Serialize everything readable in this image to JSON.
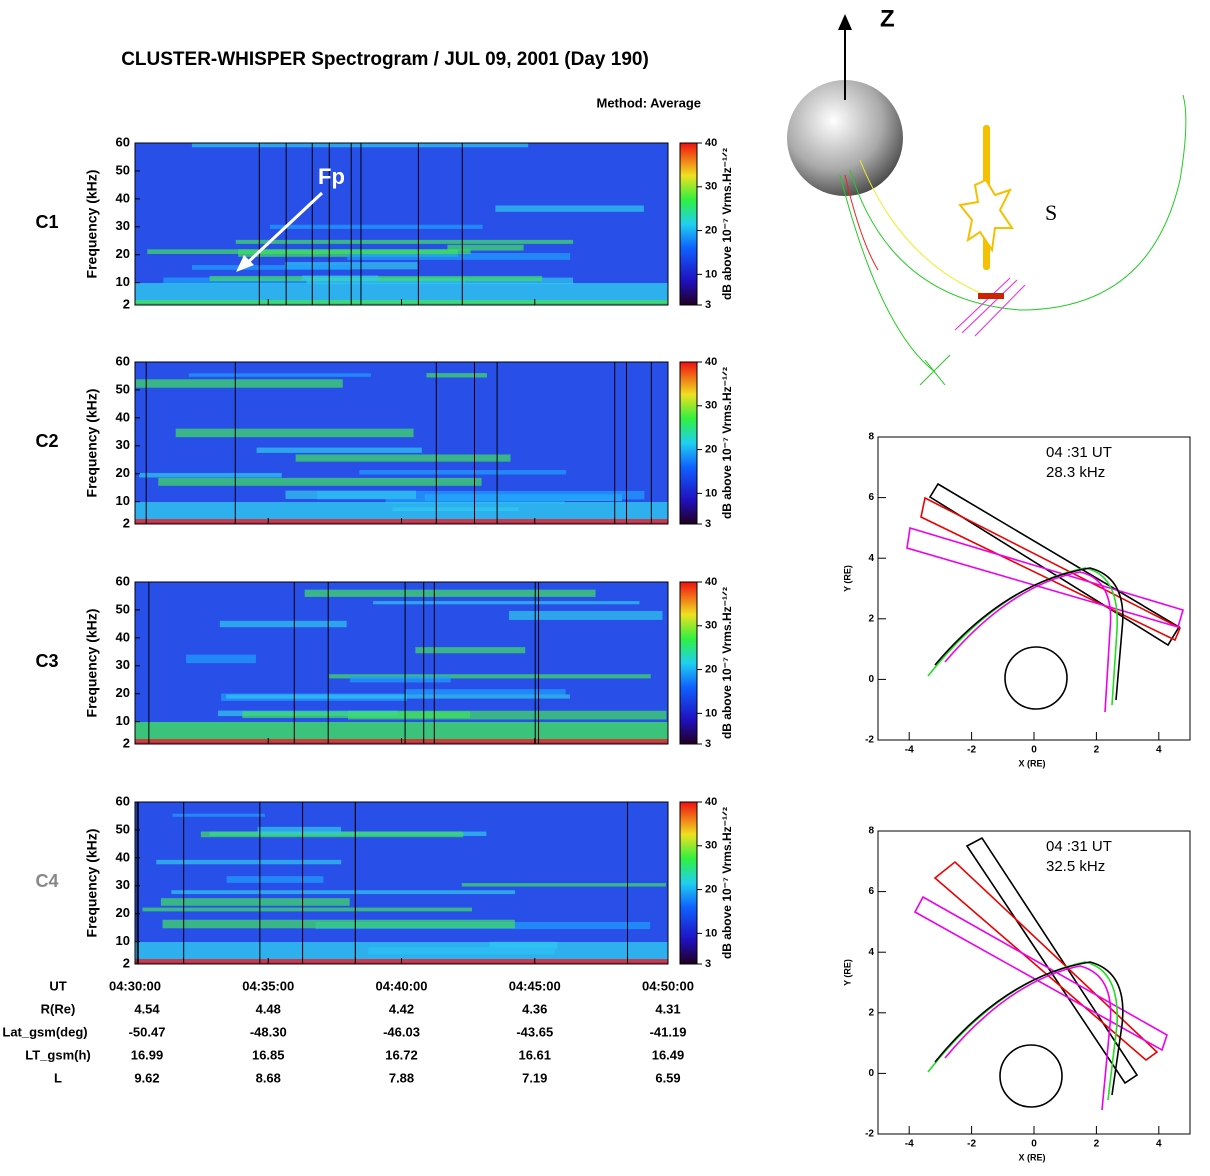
{
  "spectrogram": {
    "title": "CLUSTER-WHISPER Spectrogram / JUL 09, 2001 (Day 190)",
    "method": "Method: Average",
    "ylabel": "Frequency (kHz)",
    "yticks": [
      2,
      10,
      20,
      30,
      40,
      50,
      60
    ],
    "ylim": [
      2,
      60
    ],
    "colorbar": {
      "label": "dB above 10⁻⁷ Vrms.Hz⁻¹ᐟ²",
      "ticks": [
        3,
        10,
        20,
        30,
        40
      ],
      "lim": [
        3,
        40
      ]
    },
    "panels": [
      "C1",
      "C2",
      "C3",
      "C4"
    ],
    "annotation": "Fp",
    "ephemeris": {
      "rows": [
        {
          "label": "UT",
          "values": [
            "04:30:00",
            "04:35:00",
            "04:40:00",
            "04:45:00",
            "04:50:00"
          ]
        },
        {
          "label": "R(Re)",
          "values": [
            "4.54",
            "4.48",
            "4.42",
            "4.36",
            "4.31"
          ]
        },
        {
          "label": "Lat_gsm(deg)",
          "values": [
            "-50.47",
            "-48.30",
            "-46.03",
            "-43.65",
            "-41.19"
          ]
        },
        {
          "label": "LT_gsm(h)",
          "values": [
            "16.99",
            "16.85",
            "16.72",
            "16.61",
            "16.49"
          ]
        },
        {
          "label": "L",
          "values": [
            "9.62",
            "8.68",
            "7.88",
            "7.19",
            "6.59"
          ]
        }
      ]
    }
  },
  "orbit": {
    "axis_label": "Z",
    "region_label": "S"
  },
  "ray_plots": [
    {
      "time": "04 :31 UT",
      "freq": "28.3 kHz",
      "xlabel": "X (RE)",
      "ylabel": "Y (RE)",
      "xticks": [
        -4,
        -2,
        0,
        2,
        4
      ],
      "xlim": [
        -5,
        5
      ],
      "yticks": [
        -2,
        0,
        2,
        4,
        6,
        8
      ],
      "ylim": [
        -2,
        8
      ]
    },
    {
      "time": "04 :31 UT",
      "freq": "32.5 kHz",
      "xlabel": "X (RE)",
      "ylabel": "Y (RE)",
      "xticks": [
        -4,
        -2,
        0,
        2,
        4
      ],
      "xlim": [
        -5,
        5
      ],
      "yticks": [
        -2,
        0,
        2,
        4,
        6,
        8
      ],
      "ylim": [
        -2,
        8
      ]
    }
  ]
}
